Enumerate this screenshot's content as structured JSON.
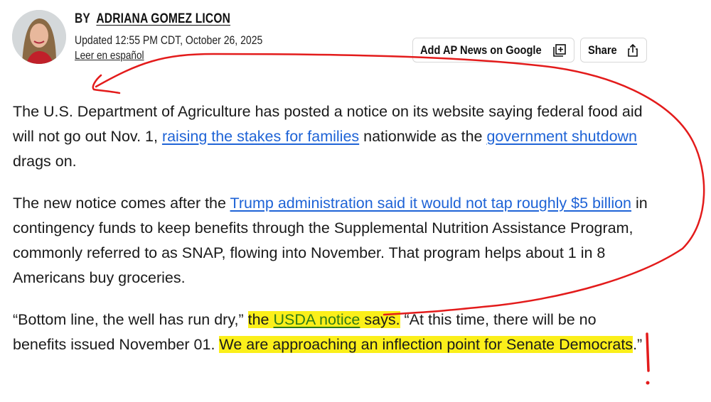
{
  "byline": {
    "prefix": "BY",
    "author": "ADRIANA GOMEZ LICON"
  },
  "updated": "Updated 12:55 PM CDT, October 26, 2025",
  "language_link": "Leer en español",
  "buttons": {
    "add_google": "Add AP News on Google",
    "share": "Share"
  },
  "icons": {
    "add_google": "add-to-collection-icon",
    "share": "share-upload-icon"
  },
  "colors": {
    "link": "#1e63d6",
    "highlight": "#fbef1a",
    "annotation": "#e31b1b"
  },
  "paragraphs": [
    {
      "t1": "The U.S. Department of Agriculture has posted a notice on its website saying federal food aid will not go out Nov. 1, ",
      "link1": "raising the stakes for families",
      "t2": " nationwide as the ",
      "link2": "government shutdown",
      "t3": " drags on."
    },
    {
      "t1": "The new notice comes after the ",
      "link1": "Trump administration said it would not tap roughly $5 billion",
      "t2": " in contingency funds to keep benefits through the Supplemental Nutrition Assistance Program, commonly referred to as SNAP, flowing into November. That program helps about 1 in 8 Americans buy groceries."
    },
    {
      "t1": "“Bottom line, the well has run dry,” ",
      "h1a": "the ",
      "link1": "USDA notice",
      "h1b": " says.",
      "t2": " “At this time, there will be no benefits issued November 01. ",
      "h2": "We are approaching an inflection point for Senate Democrats",
      "t3": ".”"
    }
  ]
}
